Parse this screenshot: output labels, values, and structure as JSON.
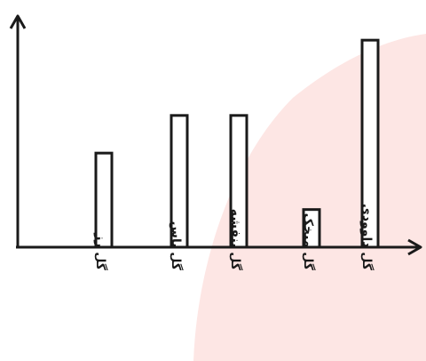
{
  "chart_data": {
    "type": "bar",
    "categories": [
      "گل رز",
      "گل یاس",
      "گل بنفشه",
      "گل میخک",
      "گل داوودی"
    ],
    "values": [
      5,
      7,
      7,
      2,
      11
    ],
    "ylim": [
      0,
      12
    ],
    "xlabel": "",
    "ylabel": "",
    "grid": false,
    "legend": "none",
    "bar_fill": "#ffffff",
    "bar_stroke": "#1a1a1a",
    "axis_color": "#1a1a1a",
    "background_shape_color": "#fde6e4"
  }
}
